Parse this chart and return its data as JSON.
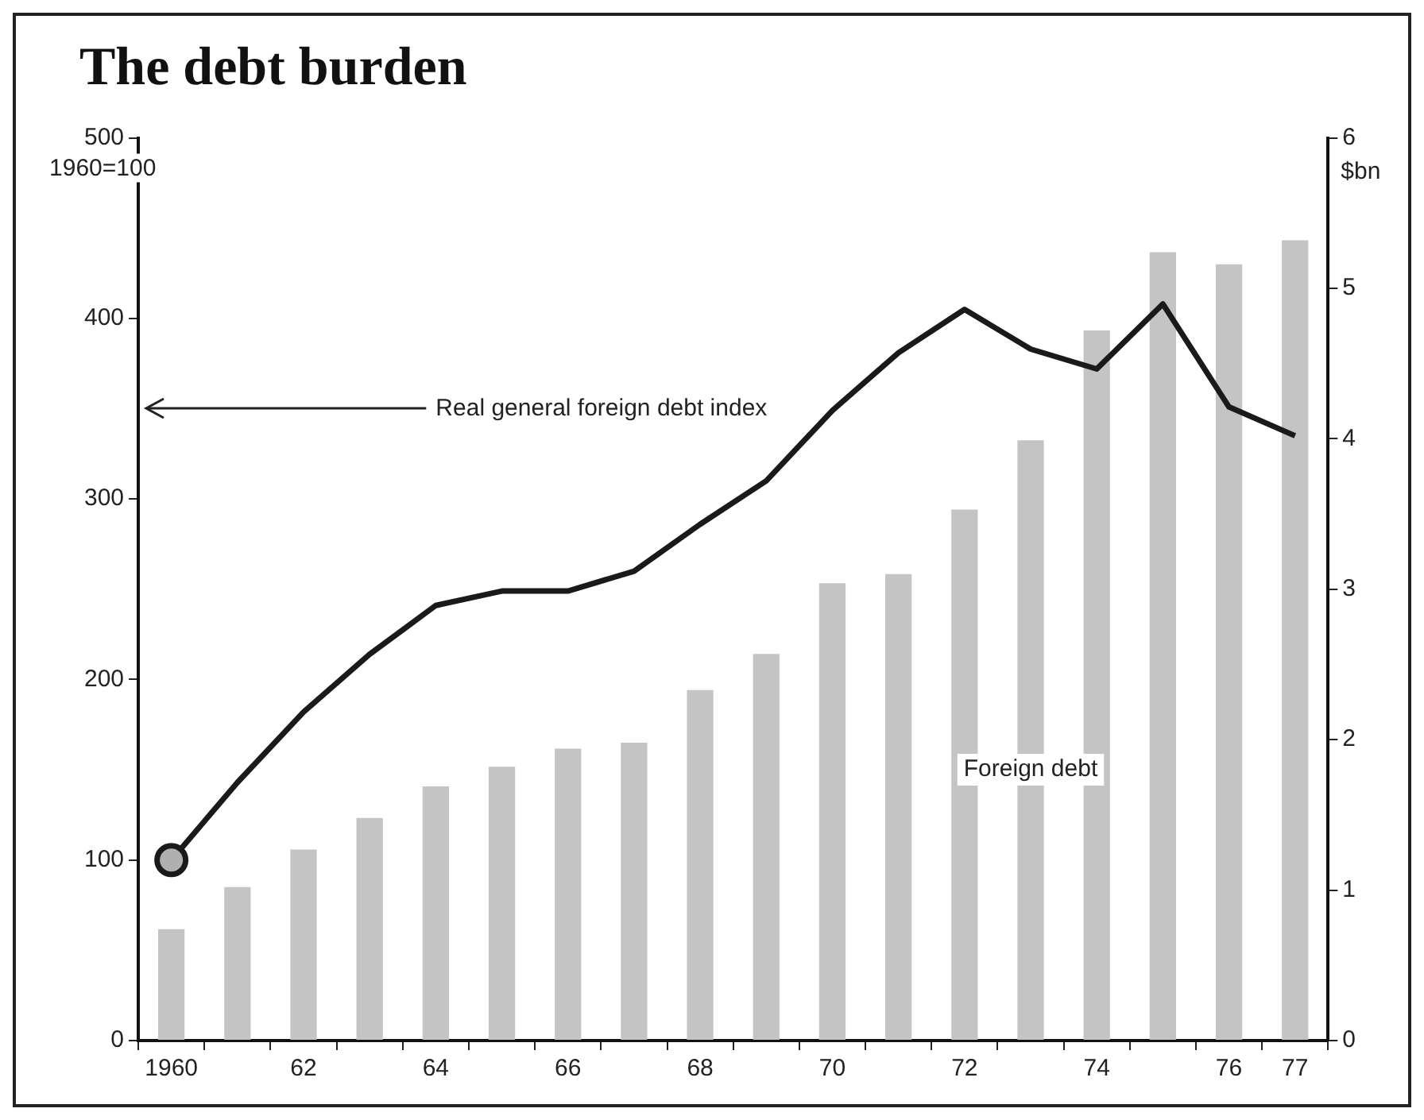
{
  "chart_data": {
    "type": "bar",
    "title": "The debt burden",
    "ylabel": "1960=100",
    "y2label": "$bn",
    "categories": [
      "1960",
      null,
      "62",
      null,
      "64",
      null,
      "66",
      null,
      "68",
      null,
      "70",
      null,
      "72",
      null,
      "74",
      null,
      "76",
      "77"
    ],
    "series": [
      {
        "name": "Foreign debt",
        "axis": "y2",
        "color": "#c4c4c4",
        "values": [
          0.74,
          1.02,
          1.27,
          1.48,
          1.69,
          1.82,
          1.94,
          1.98,
          2.33,
          2.57,
          3.04,
          3.1,
          3.53,
          3.99,
          4.72,
          5.24,
          5.16,
          5.32
        ]
      },
      {
        "name": "Real general foreign debt index",
        "type": "line",
        "color": "#1a1a1a",
        "values": [
          100,
          143,
          182,
          214,
          241,
          249,
          249,
          260,
          286,
          310,
          349,
          381,
          405,
          383,
          372,
          408,
          351,
          335
        ]
      }
    ],
    "ylim": [
      0,
      500
    ],
    "yticks": [
      0,
      100,
      200,
      300,
      400,
      500
    ],
    "y2lim": [
      0,
      6
    ],
    "y2ticks": [
      0,
      1,
      2,
      3,
      4,
      5,
      6
    ],
    "grid": false,
    "legend": false,
    "line_style": "solid"
  }
}
